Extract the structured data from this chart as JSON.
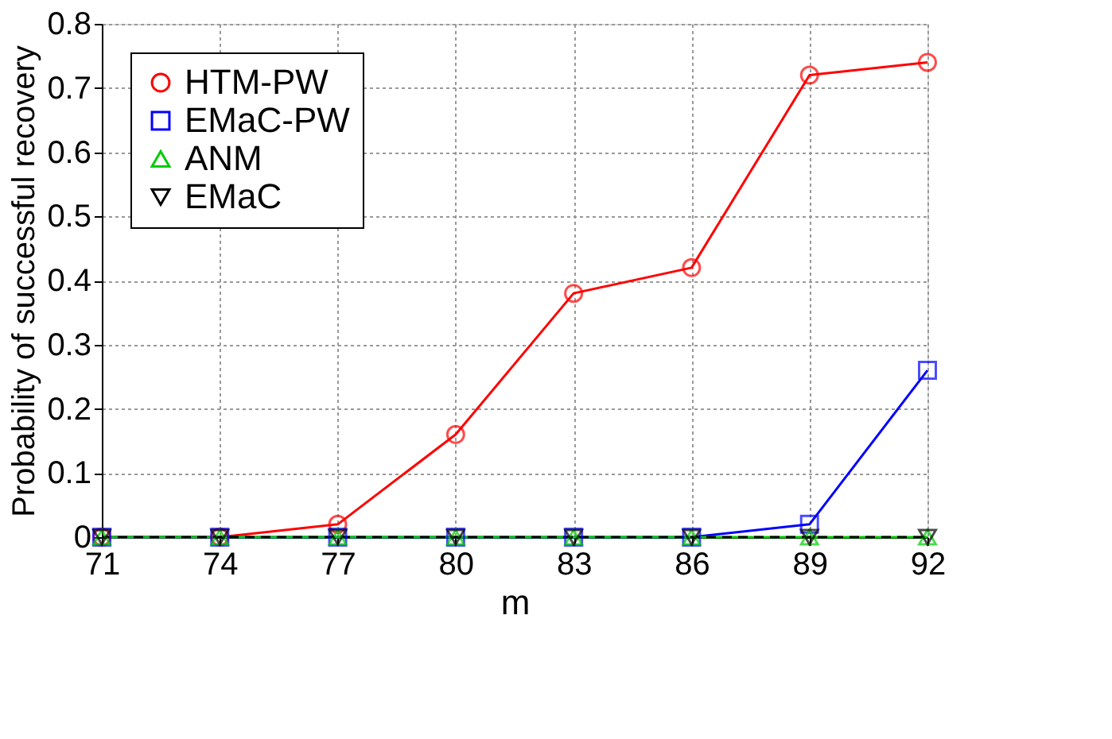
{
  "chart_data": {
    "type": "line",
    "xlabel": "m",
    "ylabel": "Probability of successful recovery",
    "x": [
      71,
      74,
      77,
      80,
      83,
      86,
      89,
      92
    ],
    "series": [
      {
        "name": "HTM-PW",
        "color": "#ff0000",
        "marker": "circle",
        "values": [
          0,
          0,
          0.02,
          0.16,
          0.38,
          0.42,
          0.72,
          0.74
        ]
      },
      {
        "name": "EMaC-PW",
        "color": "#0000ff",
        "marker": "square",
        "values": [
          0,
          0,
          0,
          0,
          0,
          0,
          0.02,
          0.26
        ]
      },
      {
        "name": "ANM",
        "color": "#00cc00",
        "marker": "triangle",
        "values": [
          0,
          0,
          0,
          0,
          0,
          0,
          0,
          0
        ]
      },
      {
        "name": "EMaC",
        "color": "#000000",
        "marker": "triangle-down",
        "line_style": "dashed",
        "values": [
          0,
          0,
          0,
          0,
          0,
          0,
          0,
          0
        ]
      }
    ],
    "xlim": [
      71,
      92
    ],
    "xticks": [
      71,
      74,
      77,
      80,
      83,
      86,
      89,
      92
    ],
    "ylim": [
      0,
      0.8
    ],
    "yticks": [
      0,
      0.1,
      0.2,
      0.3,
      0.4,
      0.5,
      0.6,
      0.7,
      0.8
    ],
    "grid": true,
    "legend": "top left"
  }
}
